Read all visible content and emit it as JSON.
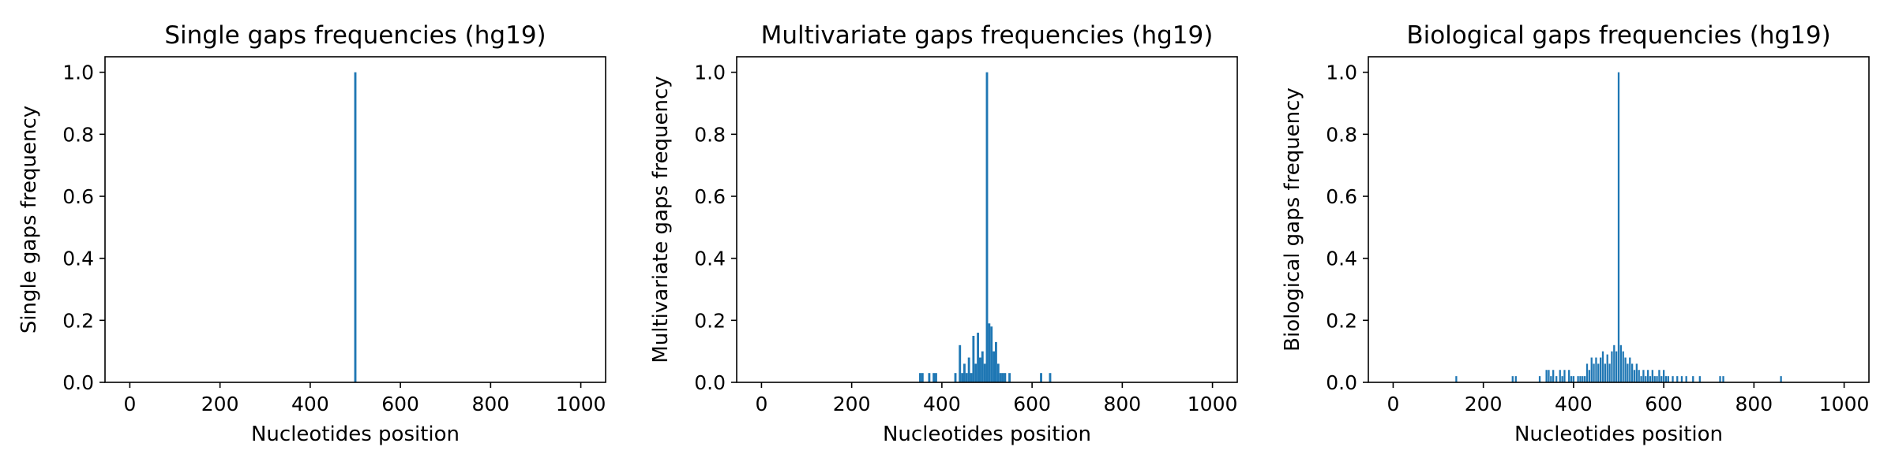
{
  "chart_data": [
    {
      "type": "bar",
      "title": "Single gaps frequencies (hg19)",
      "xlabel": "Nucleotides position",
      "ylabel": "Single gaps frequency",
      "xlim": [
        -55,
        1055
      ],
      "ylim": [
        0,
        1.05
      ],
      "xticks": [
        0,
        200,
        400,
        600,
        800,
        1000
      ],
      "yticks": [
        0.0,
        0.2,
        0.4,
        0.6,
        0.8,
        1.0
      ],
      "bar_color": "#1f77b4",
      "bar_width": 5,
      "x": [
        500
      ],
      "values": [
        1.0
      ]
    },
    {
      "type": "bar",
      "title": "Multivariate gaps frequencies (hg19)",
      "xlabel": "Nucleotides position",
      "ylabel": "Multivariate gaps frequency",
      "xlim": [
        -55,
        1055
      ],
      "ylim": [
        0,
        1.05
      ],
      "xticks": [
        0,
        200,
        400,
        600,
        800,
        1000
      ],
      "yticks": [
        0.0,
        0.2,
        0.4,
        0.6,
        0.8,
        1.0
      ],
      "bar_color": "#1f77b4",
      "bar_width": 5,
      "x": [
        352,
        357,
        372,
        382,
        387,
        430,
        440,
        445,
        450,
        455,
        460,
        465,
        470,
        475,
        480,
        485,
        490,
        495,
        500,
        505,
        510,
        515,
        520,
        525,
        530,
        535,
        540,
        550,
        620,
        640
      ],
      "values": [
        0.03,
        0.03,
        0.03,
        0.03,
        0.03,
        0.03,
        0.12,
        0.03,
        0.06,
        0.03,
        0.08,
        0.03,
        0.15,
        0.06,
        0.16,
        0.08,
        0.1,
        0.06,
        1.0,
        0.19,
        0.18,
        0.1,
        0.13,
        0.06,
        0.03,
        0.03,
        0.03,
        0.03,
        0.03,
        0.03
      ]
    },
    {
      "type": "bar",
      "title": "Biological gaps frequencies (hg19)",
      "xlabel": "Nucleotides position",
      "ylabel": "Biological gaps frequency",
      "xlim": [
        -55,
        1055
      ],
      "ylim": [
        0,
        1.05
      ],
      "xticks": [
        0,
        200,
        400,
        600,
        800,
        1000
      ],
      "yticks": [
        0.0,
        0.2,
        0.4,
        0.6,
        0.8,
        1.0
      ],
      "bar_color": "#1f77b4",
      "bar_width": 4,
      "x": [
        140,
        265,
        272,
        325,
        340,
        345,
        350,
        355,
        362,
        370,
        375,
        380,
        390,
        395,
        400,
        410,
        415,
        420,
        425,
        430,
        435,
        440,
        445,
        450,
        455,
        460,
        465,
        470,
        475,
        480,
        485,
        490,
        495,
        500,
        505,
        510,
        515,
        520,
        525,
        530,
        535,
        540,
        545,
        550,
        555,
        560,
        565,
        570,
        575,
        580,
        585,
        590,
        595,
        600,
        605,
        610,
        620,
        630,
        640,
        650,
        665,
        680,
        725,
        732,
        860
      ],
      "values": [
        0.02,
        0.02,
        0.02,
        0.02,
        0.04,
        0.04,
        0.02,
        0.04,
        0.02,
        0.04,
        0.02,
        0.04,
        0.04,
        0.02,
        0.02,
        0.02,
        0.02,
        0.02,
        0.02,
        0.06,
        0.04,
        0.08,
        0.06,
        0.08,
        0.06,
        0.08,
        0.1,
        0.06,
        0.09,
        0.06,
        0.1,
        0.12,
        0.1,
        1.0,
        0.12,
        0.1,
        0.08,
        0.06,
        0.08,
        0.06,
        0.04,
        0.06,
        0.04,
        0.02,
        0.04,
        0.02,
        0.04,
        0.02,
        0.04,
        0.02,
        0.02,
        0.04,
        0.02,
        0.04,
        0.02,
        0.02,
        0.02,
        0.02,
        0.02,
        0.02,
        0.02,
        0.02,
        0.02,
        0.02,
        0.02
      ]
    }
  ]
}
